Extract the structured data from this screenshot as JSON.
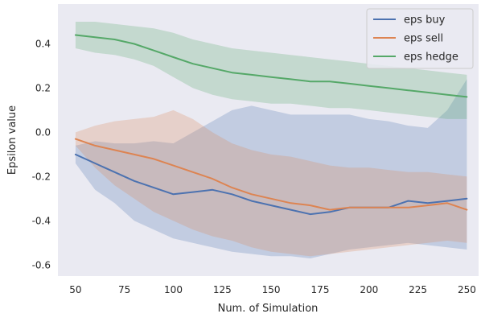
{
  "chart_data": {
    "type": "line",
    "title": "",
    "xlabel": "Num. of Simulation",
    "ylabel": "Epsilon value",
    "xlim": [
      41,
      256
    ],
    "ylim": [
      -0.65,
      0.58
    ],
    "xticks": [
      50,
      75,
      100,
      125,
      150,
      175,
      200,
      225,
      250
    ],
    "yticks": [
      -0.6,
      -0.4,
      -0.2,
      0.0,
      0.2,
      0.4
    ],
    "ytick_labels": [
      "-0.6",
      "-0.4",
      "-0.2",
      "0.0",
      "0.2",
      "0.4"
    ],
    "grid": false,
    "background": "#eaeaf2",
    "legend_position": "top-right",
    "x": [
      50,
      60,
      70,
      80,
      90,
      100,
      110,
      120,
      130,
      140,
      150,
      160,
      170,
      180,
      190,
      200,
      210,
      220,
      230,
      240,
      250
    ],
    "series": [
      {
        "name": "eps buy",
        "color": "#4c72b0",
        "values": [
          -0.1,
          -0.14,
          -0.18,
          -0.22,
          -0.25,
          -0.28,
          -0.27,
          -0.26,
          -0.28,
          -0.31,
          -0.33,
          -0.35,
          -0.37,
          -0.36,
          -0.34,
          -0.34,
          -0.34,
          -0.31,
          -0.32,
          -0.31,
          -0.3
        ],
        "lower": [
          -0.14,
          -0.26,
          -0.32,
          -0.4,
          -0.44,
          -0.48,
          -0.5,
          -0.52,
          -0.54,
          -0.55,
          -0.56,
          -0.56,
          -0.57,
          -0.55,
          -0.53,
          -0.52,
          -0.51,
          -0.5,
          -0.51,
          -0.52,
          -0.53
        ],
        "upper": [
          -0.06,
          -0.04,
          -0.05,
          -0.05,
          -0.04,
          -0.05,
          0.0,
          0.05,
          0.1,
          0.12,
          0.1,
          0.08,
          0.08,
          0.08,
          0.08,
          0.06,
          0.05,
          0.03,
          0.02,
          0.1,
          0.24
        ]
      },
      {
        "name": "eps sell",
        "color": "#dd8452",
        "values": [
          -0.03,
          -0.06,
          -0.08,
          -0.1,
          -0.12,
          -0.15,
          -0.18,
          -0.21,
          -0.25,
          -0.28,
          -0.3,
          -0.32,
          -0.33,
          -0.35,
          -0.34,
          -0.34,
          -0.34,
          -0.34,
          -0.33,
          -0.32,
          -0.35
        ],
        "lower": [
          -0.06,
          -0.16,
          -0.24,
          -0.3,
          -0.36,
          -0.4,
          -0.44,
          -0.47,
          -0.49,
          -0.52,
          -0.54,
          -0.55,
          -0.56,
          -0.55,
          -0.54,
          -0.53,
          -0.52,
          -0.51,
          -0.5,
          -0.49,
          -0.5
        ],
        "upper": [
          0.0,
          0.03,
          0.05,
          0.06,
          0.07,
          0.1,
          0.06,
          0.0,
          -0.05,
          -0.08,
          -0.1,
          -0.11,
          -0.13,
          -0.15,
          -0.16,
          -0.16,
          -0.17,
          -0.18,
          -0.18,
          -0.19,
          -0.2
        ]
      },
      {
        "name": "eps hedge",
        "color": "#55a868",
        "values": [
          0.44,
          0.43,
          0.42,
          0.4,
          0.37,
          0.34,
          0.31,
          0.29,
          0.27,
          0.26,
          0.25,
          0.24,
          0.23,
          0.23,
          0.22,
          0.21,
          0.2,
          0.19,
          0.18,
          0.17,
          0.16
        ],
        "lower": [
          0.38,
          0.36,
          0.35,
          0.33,
          0.3,
          0.25,
          0.2,
          0.17,
          0.15,
          0.14,
          0.13,
          0.13,
          0.12,
          0.11,
          0.11,
          0.1,
          0.09,
          0.08,
          0.07,
          0.06,
          0.06
        ],
        "upper": [
          0.5,
          0.5,
          0.49,
          0.48,
          0.47,
          0.45,
          0.42,
          0.4,
          0.38,
          0.37,
          0.36,
          0.35,
          0.34,
          0.33,
          0.32,
          0.31,
          0.3,
          0.29,
          0.28,
          0.27,
          0.26
        ]
      }
    ]
  }
}
